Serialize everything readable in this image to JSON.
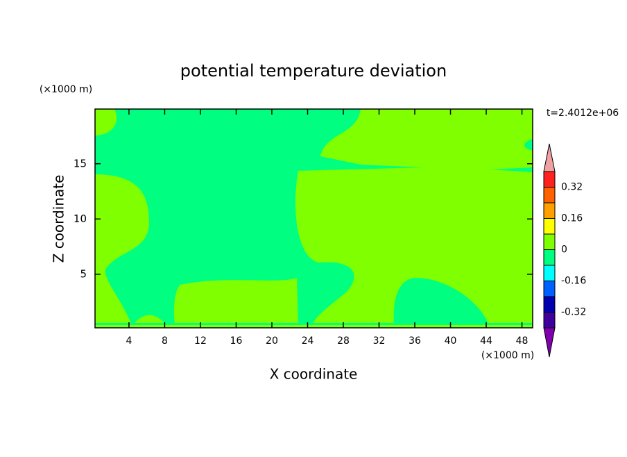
{
  "chart_data": {
    "type": "contour",
    "title": "potential temperature deviation",
    "xlabel": "X coordinate",
    "ylabel": "Z coordinate",
    "x_unit": "(×1000 m)",
    "y_unit": "(×1000 m)",
    "annotation": "t=2.4012e+06",
    "xlim": [
      0.2,
      49.2
    ],
    "ylim": [
      0.15,
      19.95
    ],
    "xticks": [
      4,
      8,
      12,
      16,
      20,
      24,
      28,
      32,
      36,
      40,
      44,
      48
    ],
    "yticks": [
      5,
      10,
      15
    ],
    "colorbar": {
      "levels": [
        -0.4,
        -0.32,
        -0.24,
        -0.16,
        -0.08,
        0,
        0.08,
        0.16,
        0.24,
        0.32,
        0.4
      ],
      "colors": [
        "#8000b0",
        "#4000a0",
        "#0000b0",
        "#0060ff",
        "#00ffff",
        "#00ff80",
        "#80ff00",
        "#ffff00",
        "#ffa000",
        "#ff6000",
        "#ff2020",
        "#f0a0a0"
      ],
      "ticks": [
        -0.32,
        -0.16,
        0,
        0.16,
        0.32
      ]
    }
  }
}
